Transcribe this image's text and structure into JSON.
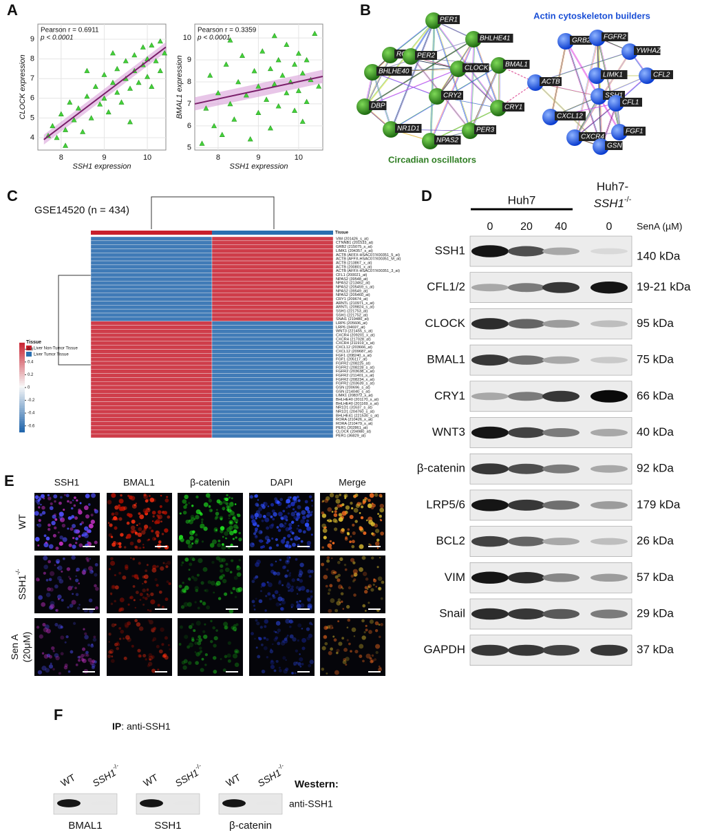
{
  "panel_a": {
    "label": "A",
    "plots": [
      {
        "stat": "Pearson r = 0.6911",
        "p": "p < 0.0001",
        "y_label": "CLOCK expression",
        "x_label": "SSH1 expression",
        "xlim": [
          7.46,
          10.43
        ],
        "xticks": [
          8,
          9,
          10
        ],
        "ylim": [
          3.37,
          9.77
        ],
        "yticks": [
          4,
          5,
          6,
          7,
          8,
          9
        ],
        "x": [
          7.7,
          7.8,
          7.9,
          8.0,
          8.1,
          8.2,
          8.3,
          8.4,
          8.5,
          8.6,
          8.7,
          8.8,
          8.9,
          9.0,
          9.0,
          9.1,
          9.2,
          9.3,
          9.3,
          9.4,
          9.5,
          9.5,
          9.6,
          9.7,
          9.7,
          9.8,
          9.9,
          9.9,
          10.0,
          10.0,
          10.1,
          10.1,
          10.2,
          10.3,
          10.3,
          10.4,
          8.6,
          9.2,
          8.1,
          9.6
        ],
        "y": [
          4.1,
          4.6,
          4.0,
          5.2,
          4.4,
          5.8,
          4.9,
          5.5,
          4.3,
          6.1,
          5.0,
          6.6,
          5.7,
          7.2,
          6.0,
          5.3,
          6.8,
          7.5,
          6.3,
          5.8,
          7.9,
          7.0,
          6.5,
          8.2,
          7.4,
          6.8,
          8.6,
          7.7,
          7.1,
          8.0,
          8.7,
          6.6,
          7.9,
          8.9,
          7.4,
          8.3,
          7.4,
          8.3,
          3.6,
          4.8
        ],
        "fit_x": [
          7.6,
          10.43
        ],
        "fit_y": [
          3.9,
          8.6
        ]
      },
      {
        "stat": "Pearson r = 0.3359",
        "p": "p < 0.0001",
        "y_label": "BMAL1 expression",
        "x_label": "SSH1 expression",
        "xlim": [
          7.42,
          10.6
        ],
        "xticks": [
          8,
          9,
          10
        ],
        "ylim": [
          4.9,
          10.63
        ],
        "yticks": [
          5,
          6,
          7,
          8,
          9,
          10
        ],
        "x": [
          7.7,
          7.8,
          7.9,
          8.0,
          8.1,
          8.2,
          8.3,
          8.4,
          8.5,
          8.6,
          8.7,
          8.8,
          8.9,
          9.0,
          9.0,
          9.1,
          9.2,
          9.3,
          9.3,
          9.4,
          9.5,
          9.5,
          9.6,
          9.7,
          9.7,
          9.8,
          9.9,
          9.9,
          10.0,
          10.0,
          10.1,
          10.2,
          10.2,
          10.3,
          10.4,
          10.5,
          8.3,
          9.4,
          7.6,
          10.1
        ],
        "y": [
          6.8,
          8.3,
          6.0,
          7.5,
          5.6,
          8.8,
          7.0,
          6.3,
          8.0,
          9.2,
          7.4,
          5.4,
          8.5,
          7.8,
          6.6,
          9.4,
          7.2,
          8.6,
          5.9,
          7.9,
          9.0,
          6.9,
          8.3,
          7.5,
          9.7,
          8.0,
          6.7,
          8.8,
          7.6,
          9.3,
          8.4,
          7.1,
          9.0,
          8.1,
          10.2,
          7.8,
          9.9,
          10.1,
          5.2,
          6.2
        ],
        "fit_x": [
          7.42,
          10.6
        ],
        "fit_y": [
          7.0,
          8.25
        ]
      }
    ]
  },
  "panel_b": {
    "label": "B",
    "circadian": {
      "title": "Circadian oscillators",
      "nodes": [
        "RORA",
        "PER1",
        "BHLHE41",
        "PER2",
        "BHLHE40",
        "CLOCK",
        "BMAL1",
        "CRY2",
        "DBP",
        "CRY1",
        "NR1D1",
        "NPAS2",
        "PER3"
      ]
    },
    "actin": {
      "title": "Actin cytoskeleton builders",
      "nodes": [
        "GRB2",
        "FGFR2",
        "YWHAZ",
        "LIMK1",
        "CFL2",
        "ACTB",
        "SSH1",
        "CFL1",
        "CXCL12",
        "CXCR4",
        "FGF1",
        "GSN"
      ]
    }
  },
  "panel_c": {
    "label": "C",
    "title": "GSE14520 (n = 434)",
    "tissue_header": "Tissue",
    "legend_title": "Tissue",
    "legend": [
      "Liver Non-Tumor Tissue",
      "Liver Tumor Tissue"
    ],
    "clim": [
      -0.7,
      0.7
    ],
    "cticks": [
      0.6,
      0.4,
      0.2,
      0,
      -0.2,
      -0.4,
      -0.6
    ],
    "rows": [
      {
        "label": "VIM (201426_s_at)",
        "values": [
          -0.6,
          0.6
        ]
      },
      {
        "label": "CTNNB1 (201533_at)",
        "values": [
          -0.6,
          0.6
        ]
      },
      {
        "label": "GRB2 (215075_s_at)",
        "values": [
          -0.6,
          0.6
        ]
      },
      {
        "label": "LIMK1 (204357_s_at)",
        "values": [
          -0.6,
          0.6
        ]
      },
      {
        "label": "ACTB (AFFX-HSAC07/X00351_5_at)",
        "values": [
          -0.6,
          0.6
        ]
      },
      {
        "label": "ACTB (AFFX-HSAC07/X00351_M_at)",
        "values": [
          -0.6,
          0.6
        ]
      },
      {
        "label": "ACTB (213867_x_at)",
        "values": [
          -0.6,
          0.6
        ]
      },
      {
        "label": "ACTB (200801_x_at)",
        "values": [
          -0.6,
          0.6
        ]
      },
      {
        "label": "ACTB (AFFX-HSAC07/X00351_3_at)",
        "values": [
          -0.6,
          0.6
        ]
      },
      {
        "label": "CFL1 (200021_at)",
        "values": [
          -0.6,
          0.6
        ]
      },
      {
        "label": "NPAS2 (39548_at)",
        "values": [
          -0.6,
          0.6
        ]
      },
      {
        "label": "NPAS2 (213462_at)",
        "values": [
          -0.6,
          0.6
        ]
      },
      {
        "label": "NPAS2 (205459_s_at)",
        "values": [
          -0.6,
          0.6
        ]
      },
      {
        "label": "NPAS2 (39549_at)",
        "values": [
          -0.6,
          0.6
        ]
      },
      {
        "label": "NPAS2 (205460_at)",
        "values": [
          -0.6,
          0.6
        ]
      },
      {
        "label": "CRY1 (209674_at)",
        "values": [
          -0.6,
          0.6
        ]
      },
      {
        "label": "ARNTL (210971_s_at)",
        "values": [
          -0.6,
          0.6
        ]
      },
      {
        "label": "ARNTL (209824_s_at)",
        "values": [
          -0.6,
          0.6
        ]
      },
      {
        "label": "SSH1 (221753_at)",
        "values": [
          -0.6,
          0.6
        ]
      },
      {
        "label": "SSH1 (221752_at)",
        "values": [
          -0.6,
          0.6
        ]
      },
      {
        "label": "SNAI1 (219480_at)",
        "values": [
          -0.6,
          0.6
        ]
      },
      {
        "label": "LRP6 (205606_at)",
        "values": [
          0.6,
          -0.6
        ]
      },
      {
        "label": "LRP6 (34697_at)",
        "values": [
          0.6,
          -0.6
        ]
      },
      {
        "label": "WNT3 (221455_s_at)",
        "values": [
          0.6,
          -0.6
        ]
      },
      {
        "label": "CXCR4 (209201_x_at)",
        "values": [
          0.6,
          -0.6
        ]
      },
      {
        "label": "CXCR4 (217028_at)",
        "values": [
          0.6,
          -0.6
        ]
      },
      {
        "label": "CXCR4 (211919_s_at)",
        "values": [
          0.6,
          -0.6
        ]
      },
      {
        "label": "CXCL12 (203666_at)",
        "values": [
          0.6,
          -0.6
        ]
      },
      {
        "label": "CXCL12 (209687_at)",
        "values": [
          0.6,
          -0.6
        ]
      },
      {
        "label": "FGF1 (208240_s_at)",
        "values": [
          0.6,
          -0.6
        ]
      },
      {
        "label": "FGF1 (205117_at)",
        "values": [
          0.6,
          -0.6
        ]
      },
      {
        "label": "FGFR2 (208225_at)",
        "values": [
          0.6,
          -0.6
        ]
      },
      {
        "label": "FGFR2 (208228_s_at)",
        "values": [
          0.6,
          -0.6
        ]
      },
      {
        "label": "FGFR2 (203638_s_at)",
        "values": [
          0.6,
          -0.6
        ]
      },
      {
        "label": "FGFR2 (211401_s_at)",
        "values": [
          0.6,
          -0.6
        ]
      },
      {
        "label": "FGFR2 (208234_x_at)",
        "values": [
          0.6,
          -0.6
        ]
      },
      {
        "label": "FGFR2 (203639_s_at)",
        "values": [
          0.6,
          -0.6
        ]
      },
      {
        "label": "GSN (200696_s_at)",
        "values": [
          0.6,
          -0.6
        ]
      },
      {
        "label": "GSN (214040_s_at)",
        "values": [
          0.6,
          -0.6
        ]
      },
      {
        "label": "LIMK1 (208372_s_at)",
        "values": [
          0.6,
          -0.6
        ]
      },
      {
        "label": "BHLHE40 (201170_s_at)",
        "values": [
          0.6,
          -0.6
        ]
      },
      {
        "label": "BHLHE40 (201169_s_at)",
        "values": [
          0.6,
          -0.6
        ]
      },
      {
        "label": "NR1D1 (31637_s_at)",
        "values": [
          0.6,
          -0.6
        ]
      },
      {
        "label": "NR1D1 (204760_s_at)",
        "values": [
          0.6,
          -0.6
        ]
      },
      {
        "label": "BHLHE41 (221530_s_at)",
        "values": [
          0.6,
          -0.6
        ]
      },
      {
        "label": "RORA (210426_x_at)",
        "values": [
          0.6,
          -0.6
        ]
      },
      {
        "label": "RORA (210479_s_at)",
        "values": [
          0.6,
          -0.6
        ]
      },
      {
        "label": "PER1 (202861_at)",
        "values": [
          0.6,
          -0.6
        ]
      },
      {
        "label": "CLOCK (204980_at)",
        "values": [
          0.6,
          -0.6
        ]
      },
      {
        "label": "PER1 (36829_at)",
        "values": [
          0.6,
          -0.6
        ]
      }
    ]
  },
  "panel_d": {
    "label": "D",
    "group": "Huh7",
    "ko_prefix": "Huh7-",
    "ko_gene": "SSH1",
    "ko_sup": "-/-",
    "doses": [
      "0",
      "20",
      "40",
      "0"
    ],
    "dose_label": "SenA (µM)",
    "rows": [
      {
        "name": "SSH1",
        "kda": "140 kDa",
        "intensity": [
          0.95,
          0.7,
          0.3,
          0.08
        ]
      },
      {
        "name": "CFL1/2",
        "kda": "19-21 kDa",
        "intensity": [
          0.3,
          0.5,
          0.8,
          0.95
        ]
      },
      {
        "name": "CLOCK",
        "kda": "95 kDa",
        "intensity": [
          0.85,
          0.6,
          0.35,
          0.2
        ]
      },
      {
        "name": "BMAL1",
        "kda": "75 kDa",
        "intensity": [
          0.8,
          0.55,
          0.3,
          0.15
        ]
      },
      {
        "name": "CRY1",
        "kda": "66 kDa",
        "intensity": [
          0.3,
          0.5,
          0.8,
          1.0
        ]
      },
      {
        "name": "WNT3",
        "kda": "40 kDa",
        "intensity": [
          0.95,
          0.75,
          0.5,
          0.3
        ]
      },
      {
        "name": "β-catenin",
        "kda": "92 kDa",
        "intensity": [
          0.8,
          0.7,
          0.5,
          0.3
        ]
      },
      {
        "name": "LRP5/6",
        "kda": "179 kDa",
        "intensity": [
          0.95,
          0.8,
          0.55,
          0.35
        ]
      },
      {
        "name": "BCL2",
        "kda": "26 kDa",
        "intensity": [
          0.75,
          0.6,
          0.3,
          0.2
        ]
      },
      {
        "name": "VIM",
        "kda": "57 kDa",
        "intensity": [
          0.95,
          0.85,
          0.45,
          0.35
        ]
      },
      {
        "name": "Snail",
        "kda": "29 kDa",
        "intensity": [
          0.85,
          0.8,
          0.65,
          0.5
        ]
      },
      {
        "name": "GAPDH",
        "kda": "37 kDa",
        "intensity": [
          0.8,
          0.8,
          0.75,
          0.8
        ]
      }
    ]
  },
  "panel_e": {
    "label": "E",
    "columns": [
      "SSH1",
      "BMAL1",
      "β-catenin",
      "DAPI",
      "Merge"
    ],
    "rows": [
      {
        "text": "WT"
      },
      {
        "text": "SSH1",
        "sup": "-/-"
      },
      {
        "text": "Sen A",
        "line2": "(20μM)"
      }
    ]
  },
  "panel_f": {
    "label": "F",
    "ip_prefix": "IP",
    "ip": ": anti-SSH1",
    "western": "Western:",
    "antibody": "anti-SSH1",
    "blots": [
      {
        "name": "BMAL1",
        "lanes": [
          "WT",
          "SSH1"
        ],
        "sup": "-/-",
        "intensity": [
          0.95,
          0.02
        ]
      },
      {
        "name": "SSH1",
        "lanes": [
          "WT",
          "SSH1"
        ],
        "sup": "-/-",
        "intensity": [
          0.95,
          0.02
        ]
      },
      {
        "name": "β-catenin",
        "lanes": [
          "WT",
          "SSH1"
        ],
        "sup": "-/-",
        "intensity": [
          0.95,
          0.02
        ]
      }
    ]
  }
}
